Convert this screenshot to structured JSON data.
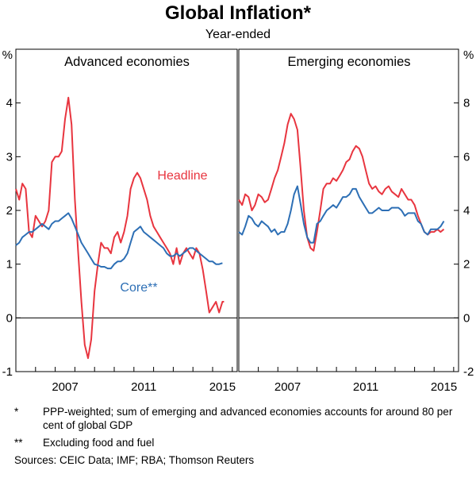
{
  "title": "Global Inflation*",
  "subtitle": "Year-ended",
  "colors": {
    "headline": "#e8353f",
    "core": "#2d6fb5",
    "axis": "#000000",
    "gridline": "#000000"
  },
  "footnotes": [
    {
      "mark": "*",
      "text": "PPP-weighted; sum of emerging and advanced economies accounts for around 80 per cent of global GDP"
    },
    {
      "mark": "**",
      "text": "Excluding food and fuel"
    }
  ],
  "sources": "Sources:   CEIC Data; IMF; RBA; Thomson Reuters",
  "chart_data": [
    {
      "type": "line",
      "panel": "left",
      "title": "Advanced economies",
      "ylabel": "%",
      "ylim": [
        -1,
        5
      ],
      "yticks": [
        "-1",
        "0",
        "1",
        "2",
        "3",
        "4"
      ],
      "xlim": [
        2005.0,
        2016.25
      ],
      "xticks": [
        2007,
        2011,
        2015
      ],
      "xtick_labels": [
        "2007",
        "2011",
        "2015"
      ],
      "annotations": [
        {
          "text": "Headline",
          "series": "Headline"
        },
        {
          "text": "Core**",
          "series": "Core"
        }
      ],
      "series": [
        {
          "name": "Headline",
          "x": [
            2005.0,
            2005.17,
            2005.33,
            2005.5,
            2005.67,
            2005.83,
            2006.0,
            2006.17,
            2006.33,
            2006.5,
            2006.67,
            2006.83,
            2007.0,
            2007.17,
            2007.33,
            2007.5,
            2007.67,
            2007.83,
            2008.0,
            2008.17,
            2008.33,
            2008.5,
            2008.67,
            2008.83,
            2009.0,
            2009.17,
            2009.33,
            2009.5,
            2009.67,
            2009.83,
            2010.0,
            2010.17,
            2010.33,
            2010.5,
            2010.67,
            2010.83,
            2011.0,
            2011.17,
            2011.33,
            2011.5,
            2011.67,
            2011.83,
            2012.0,
            2012.17,
            2012.33,
            2012.5,
            2012.67,
            2012.83,
            2013.0,
            2013.17,
            2013.33,
            2013.5,
            2013.67,
            2013.83,
            2014.0,
            2014.17,
            2014.33,
            2014.5,
            2014.67,
            2014.83,
            2015.0,
            2015.17,
            2015.33,
            2015.5,
            2015.58
          ],
          "values": [
            2.4,
            2.2,
            2.5,
            2.4,
            1.6,
            1.5,
            1.9,
            1.8,
            1.7,
            1.8,
            2.0,
            2.9,
            3.0,
            3.0,
            3.1,
            3.7,
            4.1,
            3.6,
            2.2,
            1.2,
            0.3,
            -0.5,
            -0.75,
            -0.4,
            0.5,
            1.0,
            1.4,
            1.3,
            1.3,
            1.2,
            1.5,
            1.6,
            1.4,
            1.6,
            1.9,
            2.4,
            2.6,
            2.7,
            2.6,
            2.4,
            2.2,
            1.9,
            1.7,
            1.6,
            1.5,
            1.4,
            1.3,
            1.2,
            1.0,
            1.3,
            1.0,
            1.2,
            1.3,
            1.2,
            1.1,
            1.3,
            1.2,
            0.9,
            0.5,
            0.1,
            0.2,
            0.3,
            0.1,
            0.3,
            0.3
          ]
        },
        {
          "name": "Core",
          "x": [
            2005.0,
            2005.17,
            2005.33,
            2005.5,
            2005.67,
            2005.83,
            2006.0,
            2006.17,
            2006.33,
            2006.5,
            2006.67,
            2006.83,
            2007.0,
            2007.17,
            2007.33,
            2007.5,
            2007.67,
            2007.83,
            2008.0,
            2008.17,
            2008.33,
            2008.5,
            2008.67,
            2008.83,
            2009.0,
            2009.17,
            2009.33,
            2009.5,
            2009.67,
            2009.83,
            2010.0,
            2010.17,
            2010.33,
            2010.5,
            2010.67,
            2010.83,
            2011.0,
            2011.17,
            2011.33,
            2011.5,
            2011.67,
            2011.83,
            2012.0,
            2012.17,
            2012.33,
            2012.5,
            2012.67,
            2012.83,
            2013.0,
            2013.17,
            2013.33,
            2013.5,
            2013.67,
            2013.83,
            2014.0,
            2014.17,
            2014.33,
            2014.5,
            2014.67,
            2014.83,
            2015.0,
            2015.17,
            2015.33,
            2015.5
          ],
          "values": [
            1.35,
            1.4,
            1.5,
            1.55,
            1.6,
            1.6,
            1.65,
            1.7,
            1.75,
            1.7,
            1.65,
            1.75,
            1.8,
            1.8,
            1.85,
            1.9,
            1.95,
            1.85,
            1.7,
            1.55,
            1.4,
            1.3,
            1.2,
            1.1,
            1.0,
            0.98,
            0.95,
            0.95,
            0.92,
            0.92,
            1.0,
            1.05,
            1.05,
            1.1,
            1.2,
            1.4,
            1.6,
            1.65,
            1.7,
            1.6,
            1.55,
            1.5,
            1.45,
            1.4,
            1.35,
            1.3,
            1.2,
            1.15,
            1.15,
            1.2,
            1.15,
            1.2,
            1.25,
            1.3,
            1.3,
            1.25,
            1.2,
            1.15,
            1.1,
            1.05,
            1.05,
            1.0,
            1.0,
            1.02
          ]
        }
      ]
    },
    {
      "type": "line",
      "panel": "right",
      "title": "Emerging economies",
      "ylabel": "%",
      "ylim": [
        -2,
        10
      ],
      "yticks": [
        "-2",
        "0",
        "2",
        "4",
        "6",
        "8"
      ],
      "xlim": [
        2005.0,
        2016.25
      ],
      "xticks": [
        2007,
        2011,
        2015
      ],
      "xtick_labels": [
        "2007",
        "2011",
        "2015"
      ],
      "series": [
        {
          "name": "Headline",
          "x": [
            2005.0,
            2005.17,
            2005.33,
            2005.5,
            2005.67,
            2005.83,
            2006.0,
            2006.17,
            2006.33,
            2006.5,
            2006.67,
            2006.83,
            2007.0,
            2007.17,
            2007.33,
            2007.5,
            2007.67,
            2007.83,
            2008.0,
            2008.17,
            2008.33,
            2008.5,
            2008.67,
            2008.83,
            2009.0,
            2009.17,
            2009.33,
            2009.5,
            2009.67,
            2009.83,
            2010.0,
            2010.17,
            2010.33,
            2010.5,
            2010.67,
            2010.83,
            2011.0,
            2011.17,
            2011.33,
            2011.5,
            2011.67,
            2011.83,
            2012.0,
            2012.17,
            2012.33,
            2012.5,
            2012.67,
            2012.83,
            2013.0,
            2013.17,
            2013.33,
            2013.5,
            2013.67,
            2013.83,
            2014.0,
            2014.17,
            2014.33,
            2014.5,
            2014.67,
            2014.83,
            2015.0,
            2015.17,
            2015.33,
            2015.5
          ],
          "values": [
            4.4,
            4.2,
            4.6,
            4.5,
            4.0,
            4.2,
            4.6,
            4.5,
            4.3,
            4.4,
            4.8,
            5.2,
            5.5,
            6.0,
            6.5,
            7.2,
            7.6,
            7.4,
            7.0,
            5.5,
            4.0,
            3.0,
            2.6,
            2.5,
            3.2,
            4.0,
            4.8,
            5.0,
            5.0,
            5.2,
            5.1,
            5.3,
            5.5,
            5.8,
            5.9,
            6.2,
            6.4,
            6.3,
            6.0,
            5.5,
            5.0,
            4.8,
            4.9,
            4.7,
            4.6,
            4.8,
            4.9,
            4.7,
            4.6,
            4.5,
            4.8,
            4.6,
            4.4,
            4.4,
            4.2,
            3.8,
            3.5,
            3.2,
            3.1,
            3.2,
            3.2,
            3.3,
            3.2,
            3.3
          ]
        },
        {
          "name": "Core",
          "x": [
            2005.0,
            2005.17,
            2005.33,
            2005.5,
            2005.67,
            2005.83,
            2006.0,
            2006.17,
            2006.33,
            2006.5,
            2006.67,
            2006.83,
            2007.0,
            2007.17,
            2007.33,
            2007.5,
            2007.67,
            2007.83,
            2008.0,
            2008.17,
            2008.33,
            2008.5,
            2008.67,
            2008.83,
            2009.0,
            2009.17,
            2009.33,
            2009.5,
            2009.67,
            2009.83,
            2010.0,
            2010.17,
            2010.33,
            2010.5,
            2010.67,
            2010.83,
            2011.0,
            2011.17,
            2011.33,
            2011.5,
            2011.67,
            2011.83,
            2012.0,
            2012.17,
            2012.33,
            2012.5,
            2012.67,
            2012.83,
            2013.0,
            2013.17,
            2013.33,
            2013.5,
            2013.67,
            2013.83,
            2014.0,
            2014.17,
            2014.33,
            2014.5,
            2014.67,
            2014.83,
            2015.0,
            2015.17,
            2015.33,
            2015.5
          ],
          "values": [
            3.2,
            3.1,
            3.4,
            3.8,
            3.7,
            3.5,
            3.4,
            3.6,
            3.5,
            3.4,
            3.2,
            3.3,
            3.1,
            3.2,
            3.2,
            3.5,
            4.0,
            4.6,
            4.9,
            4.2,
            3.5,
            3.0,
            2.8,
            2.8,
            3.5,
            3.6,
            3.8,
            4.0,
            4.1,
            4.2,
            4.1,
            4.3,
            4.5,
            4.5,
            4.6,
            4.8,
            4.8,
            4.5,
            4.3,
            4.1,
            3.9,
            3.9,
            4.0,
            4.1,
            4.0,
            4.0,
            4.0,
            4.1,
            4.1,
            4.1,
            4.0,
            3.8,
            3.9,
            3.9,
            3.9,
            3.6,
            3.5,
            3.2,
            3.1,
            3.3,
            3.3,
            3.3,
            3.4,
            3.6
          ]
        }
      ]
    }
  ]
}
